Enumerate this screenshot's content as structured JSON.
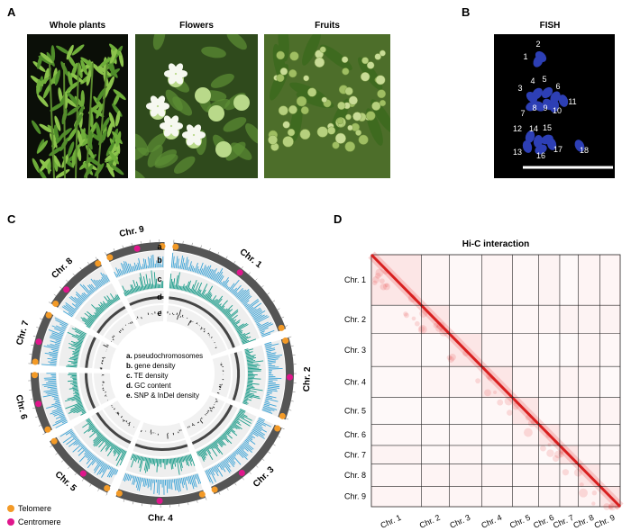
{
  "panel_a": {
    "label": "A",
    "photos": [
      {
        "title": "Whole plants"
      },
      {
        "title": "Flowers"
      },
      {
        "title": "Fruits"
      }
    ]
  },
  "panel_b": {
    "label": "B",
    "title": "FISH",
    "chromosome_numbers": [
      "1",
      "2",
      "3",
      "4",
      "5",
      "6",
      "7",
      "8",
      "9",
      "10",
      "11",
      "12",
      "13",
      "14",
      "15",
      "16",
      "17",
      "18"
    ]
  },
  "panel_c": {
    "label": "C",
    "chromosomes": [
      "Chr. 1",
      "Chr. 2",
      "Chr. 3",
      "Chr. 4",
      "Chr. 5",
      "Chr. 6",
      "Chr. 7",
      "Chr. 8",
      "Chr. 9"
    ],
    "track_letters": [
      "a",
      "b",
      "c",
      "d",
      "e"
    ],
    "legend": [
      {
        "key": "a.",
        "text": "pseudochromosomes"
      },
      {
        "key": "b.",
        "text": "gene density"
      },
      {
        "key": "c.",
        "text": "TE density"
      },
      {
        "key": "d.",
        "text": "GC content"
      },
      {
        "key": "e.",
        "text": "SNP & InDel density"
      }
    ],
    "markers": [
      {
        "label": "Telomere",
        "color": "#f39a27"
      },
      {
        "label": "Centromere",
        "color": "#e0168c"
      }
    ]
  },
  "panel_d": {
    "label": "D",
    "title": "Hi-C interaction",
    "row_labels": [
      "Chr. 1",
      "Chr. 2",
      "Chr. 3",
      "Chr. 4",
      "Chr. 5",
      "Chr. 6",
      "Chr. 7",
      "Chr. 8",
      "Chr. 9"
    ],
    "column_labels": [
      "Chr. 1",
      "Chr. 2",
      "Chr. 3",
      "Chr. 4",
      "Chr. 5",
      "Chr. 6",
      "Chr. 7",
      "Chr. 8",
      "Chr. 9"
    ]
  }
}
